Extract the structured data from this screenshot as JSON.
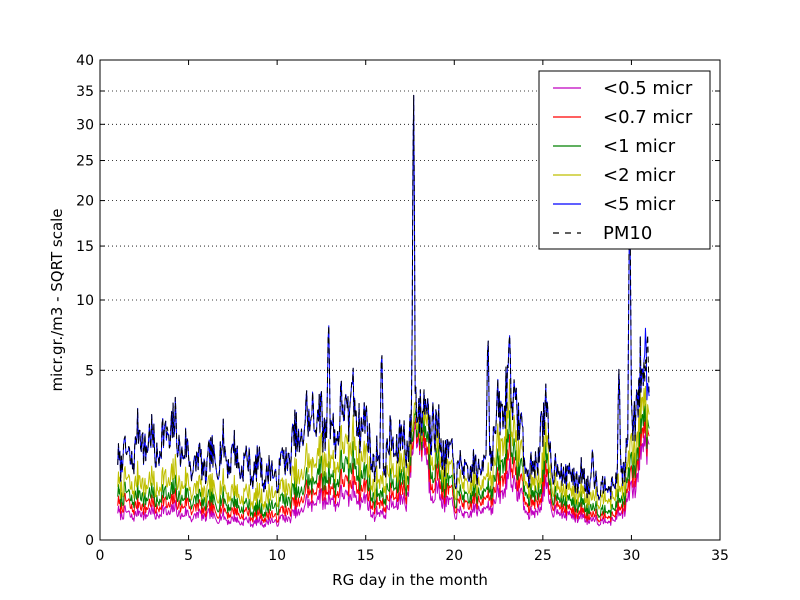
{
  "chart_data": {
    "type": "line",
    "title": "",
    "xlabel": "RG day in the month",
    "ylabel": "micr.gr./m3 - SQRT scale",
    "xlim": [
      0,
      35
    ],
    "ylim": [
      0,
      40
    ],
    "y_scale": "sqrt",
    "x_ticks": [
      0,
      5,
      10,
      15,
      20,
      25,
      30,
      35
    ],
    "y_ticks": [
      0,
      5,
      10,
      15,
      20,
      25,
      30,
      35,
      40
    ],
    "grid": "horizontal dotted",
    "legend_position": "top-right",
    "series": [
      {
        "name": "<0.5 micr",
        "color": "#bf00bf",
        "dash": "solid",
        "anchors": [
          [
            1.0,
            0.15
          ],
          [
            1.6,
            0.1
          ],
          [
            2.3,
            0.12
          ],
          [
            3.3,
            0.12
          ],
          [
            4.1,
            0.15
          ],
          [
            5.0,
            0.1
          ],
          [
            6.0,
            0.1
          ],
          [
            7.0,
            0.08
          ],
          [
            8.0,
            0.06
          ],
          [
            9.0,
            0.05
          ],
          [
            10.0,
            0.06
          ],
          [
            11.0,
            0.1
          ],
          [
            11.6,
            0.2
          ],
          [
            12.5,
            0.3
          ],
          [
            13.2,
            0.25
          ],
          [
            14.0,
            0.35
          ],
          [
            14.8,
            0.3
          ],
          [
            15.5,
            0.1
          ],
          [
            16.2,
            0.15
          ],
          [
            16.8,
            0.25
          ],
          [
            17.3,
            0.25
          ],
          [
            18.0,
            2.3
          ],
          [
            18.6,
            0.5
          ],
          [
            19.3,
            0.3
          ],
          [
            20.0,
            0.15
          ],
          [
            20.6,
            0.1
          ],
          [
            21.3,
            0.15
          ],
          [
            22.0,
            0.2
          ],
          [
            22.6,
            0.3
          ],
          [
            23.0,
            0.7
          ],
          [
            23.5,
            0.5
          ],
          [
            24.0,
            0.15
          ],
          [
            24.6,
            0.1
          ],
          [
            25.1,
            0.4
          ],
          [
            25.6,
            0.15
          ],
          [
            26.5,
            0.1
          ],
          [
            27.5,
            0.08
          ],
          [
            28.5,
            0.06
          ],
          [
            29.2,
            0.08
          ],
          [
            29.7,
            0.2
          ],
          [
            30.2,
            0.5
          ],
          [
            30.7,
            1.5
          ],
          [
            31.0,
            2.2
          ]
        ]
      },
      {
        "name": "<0.7 micr",
        "color": "#ff0000",
        "dash": "solid",
        "anchors": [
          [
            1.0,
            0.25
          ],
          [
            1.6,
            0.2
          ],
          [
            2.3,
            0.2
          ],
          [
            3.3,
            0.2
          ],
          [
            4.1,
            0.25
          ],
          [
            5.0,
            0.2
          ],
          [
            6.0,
            0.15
          ],
          [
            7.0,
            0.15
          ],
          [
            8.0,
            0.12
          ],
          [
            9.0,
            0.1
          ],
          [
            10.0,
            0.1
          ],
          [
            11.0,
            0.2
          ],
          [
            11.6,
            0.35
          ],
          [
            12.5,
            0.5
          ],
          [
            13.2,
            0.4
          ],
          [
            14.0,
            0.6
          ],
          [
            14.8,
            0.5
          ],
          [
            15.5,
            0.2
          ],
          [
            16.2,
            0.25
          ],
          [
            16.8,
            0.4
          ],
          [
            17.3,
            0.4
          ],
          [
            18.0,
            2.5
          ],
          [
            18.6,
            0.8
          ],
          [
            19.3,
            0.5
          ],
          [
            20.0,
            0.25
          ],
          [
            20.6,
            0.2
          ],
          [
            21.3,
            0.25
          ],
          [
            22.0,
            0.35
          ],
          [
            22.6,
            0.5
          ],
          [
            23.0,
            1.2
          ],
          [
            23.5,
            0.8
          ],
          [
            24.0,
            0.25
          ],
          [
            24.6,
            0.2
          ],
          [
            25.1,
            0.6
          ],
          [
            25.6,
            0.25
          ],
          [
            26.5,
            0.15
          ],
          [
            27.5,
            0.12
          ],
          [
            28.5,
            0.1
          ],
          [
            29.2,
            0.12
          ],
          [
            29.7,
            0.3
          ],
          [
            30.2,
            0.8
          ],
          [
            30.7,
            2.0
          ],
          [
            31.0,
            2.6
          ]
        ]
      },
      {
        "name": "<1 micr",
        "color": "#008000",
        "dash": "solid",
        "anchors": [
          [
            1.0,
            0.4
          ],
          [
            1.6,
            0.3
          ],
          [
            2.3,
            0.35
          ],
          [
            3.3,
            0.3
          ],
          [
            4.1,
            0.4
          ],
          [
            5.0,
            0.3
          ],
          [
            6.0,
            0.25
          ],
          [
            7.0,
            0.25
          ],
          [
            8.0,
            0.2
          ],
          [
            9.0,
            0.15
          ],
          [
            10.0,
            0.2
          ],
          [
            11.0,
            0.35
          ],
          [
            11.6,
            0.5
          ],
          [
            12.5,
            0.8
          ],
          [
            13.2,
            0.6
          ],
          [
            14.0,
            1.0
          ],
          [
            14.8,
            0.8
          ],
          [
            15.5,
            0.3
          ],
          [
            16.2,
            0.4
          ],
          [
            16.8,
            0.6
          ],
          [
            17.3,
            0.6
          ],
          [
            18.0,
            2.8
          ],
          [
            18.6,
            1.2
          ],
          [
            19.3,
            0.7
          ],
          [
            20.0,
            0.35
          ],
          [
            20.6,
            0.3
          ],
          [
            21.3,
            0.35
          ],
          [
            22.0,
            0.5
          ],
          [
            22.6,
            0.8
          ],
          [
            23.0,
            1.8
          ],
          [
            23.5,
            1.2
          ],
          [
            24.0,
            0.4
          ],
          [
            24.6,
            0.3
          ],
          [
            25.1,
            0.9
          ],
          [
            25.6,
            0.35
          ],
          [
            26.5,
            0.25
          ],
          [
            27.5,
            0.2
          ],
          [
            28.5,
            0.15
          ],
          [
            29.2,
            0.2
          ],
          [
            29.7,
            0.45
          ],
          [
            30.2,
            1.1
          ],
          [
            30.7,
            2.5
          ],
          [
            31.0,
            3.0
          ]
        ]
      },
      {
        "name": "<2 micr",
        "color": "#bfbf00",
        "dash": "solid",
        "anchors": [
          [
            1.0,
            0.6
          ],
          [
            1.6,
            0.5
          ],
          [
            2.3,
            0.6
          ],
          [
            3.3,
            0.5
          ],
          [
            4.1,
            0.7
          ],
          [
            5.0,
            0.5
          ],
          [
            6.0,
            0.4
          ],
          [
            7.0,
            0.45
          ],
          [
            8.0,
            0.35
          ],
          [
            9.0,
            0.3
          ],
          [
            10.0,
            0.35
          ],
          [
            11.0,
            0.6
          ],
          [
            11.6,
            0.9
          ],
          [
            12.5,
            1.3
          ],
          [
            13.2,
            1.0
          ],
          [
            14.0,
            1.6
          ],
          [
            14.8,
            1.3
          ],
          [
            15.5,
            0.5
          ],
          [
            16.2,
            0.7
          ],
          [
            16.8,
            0.9
          ],
          [
            17.3,
            0.9
          ],
          [
            18.0,
            3.2
          ],
          [
            18.6,
            1.8
          ],
          [
            19.3,
            1.0
          ],
          [
            20.0,
            0.55
          ],
          [
            20.6,
            0.5
          ],
          [
            21.3,
            0.5
          ],
          [
            22.0,
            0.8
          ],
          [
            22.6,
            1.3
          ],
          [
            23.0,
            2.8
          ],
          [
            23.5,
            1.8
          ],
          [
            24.0,
            0.6
          ],
          [
            24.6,
            0.5
          ],
          [
            25.1,
            1.3
          ],
          [
            25.6,
            0.55
          ],
          [
            26.5,
            0.4
          ],
          [
            27.5,
            0.35
          ],
          [
            28.5,
            0.3
          ],
          [
            29.2,
            0.35
          ],
          [
            29.7,
            0.7
          ],
          [
            30.2,
            1.6
          ],
          [
            30.7,
            3.2
          ],
          [
            31.0,
            3.8
          ]
        ]
      },
      {
        "name": "<5 micr",
        "color": "#0000ff",
        "dash": "solid",
        "anchors": [
          [
            1.0,
            1.2
          ],
          [
            1.6,
            1.0
          ],
          [
            2.3,
            1.8
          ],
          [
            3.3,
            1.4
          ],
          [
            4.1,
            2.0
          ],
          [
            5.0,
            1.1
          ],
          [
            6.0,
            0.9
          ],
          [
            7.0,
            1.3
          ],
          [
            8.0,
            1.0
          ],
          [
            9.0,
            0.8
          ],
          [
            10.0,
            0.7
          ],
          [
            11.0,
            1.5
          ],
          [
            11.6,
            2.2
          ],
          [
            12.5,
            2.5
          ],
          [
            13.2,
            2.0
          ],
          [
            14.0,
            3.0
          ],
          [
            14.8,
            2.5
          ],
          [
            15.5,
            1.0
          ],
          [
            16.2,
            1.3
          ],
          [
            16.8,
            1.6
          ],
          [
            17.3,
            1.6
          ],
          [
            18.0,
            3.5
          ],
          [
            18.6,
            2.3
          ],
          [
            19.3,
            1.5
          ],
          [
            20.0,
            0.9
          ],
          [
            20.6,
            0.8
          ],
          [
            21.3,
            0.8
          ],
          [
            22.0,
            1.5
          ],
          [
            22.6,
            2.5
          ],
          [
            23.0,
            4.5
          ],
          [
            23.5,
            3.0
          ],
          [
            24.0,
            0.9
          ],
          [
            24.6,
            0.8
          ],
          [
            25.1,
            2.3
          ],
          [
            25.6,
            0.9
          ],
          [
            26.5,
            0.7
          ],
          [
            27.5,
            0.6
          ],
          [
            28.5,
            0.5
          ],
          [
            29.2,
            0.6
          ],
          [
            29.7,
            1.2
          ],
          [
            30.2,
            2.8
          ],
          [
            30.7,
            4.5
          ],
          [
            31.0,
            5.0
          ]
        ],
        "peaks": [
          [
            1.35,
            1.8
          ],
          [
            2.1,
            2.0
          ],
          [
            3.8,
            2.1
          ],
          [
            7.5,
            1.6
          ],
          [
            9.0,
            1.5
          ],
          [
            10.3,
            1.3
          ],
          [
            12.0,
            3.8
          ],
          [
            12.9,
            9.0
          ],
          [
            14.2,
            4.5
          ],
          [
            15.9,
            7.0
          ],
          [
            17.7,
            37.5
          ],
          [
            18.8,
            3.5
          ],
          [
            21.9,
            8.0
          ],
          [
            22.3,
            2.0
          ],
          [
            23.1,
            7.0
          ],
          [
            23.5,
            4.0
          ],
          [
            24.9,
            3.3
          ],
          [
            27.8,
            1.5
          ],
          [
            29.3,
            5.5
          ],
          [
            29.9,
            21.0
          ],
          [
            30.3,
            4.0
          ],
          [
            30.8,
            8.0
          ]
        ]
      },
      {
        "name": "PM10",
        "color": "#000000",
        "dash": "dashed",
        "anchors": [
          [
            1.0,
            1.2
          ],
          [
            1.6,
            1.0
          ],
          [
            2.3,
            1.8
          ],
          [
            3.3,
            1.4
          ],
          [
            4.1,
            2.0
          ],
          [
            5.0,
            1.1
          ],
          [
            6.0,
            0.9
          ],
          [
            7.0,
            1.3
          ],
          [
            8.0,
            1.0
          ],
          [
            9.0,
            0.8
          ],
          [
            10.0,
            0.7
          ],
          [
            11.0,
            1.5
          ],
          [
            11.6,
            2.2
          ],
          [
            12.5,
            2.5
          ],
          [
            13.2,
            2.0
          ],
          [
            14.0,
            3.0
          ],
          [
            14.8,
            2.5
          ],
          [
            15.5,
            1.0
          ],
          [
            16.2,
            1.3
          ],
          [
            16.8,
            1.6
          ],
          [
            17.3,
            1.6
          ],
          [
            18.0,
            3.5
          ],
          [
            18.6,
            2.3
          ],
          [
            19.3,
            1.5
          ],
          [
            20.0,
            0.9
          ],
          [
            20.6,
            0.8
          ],
          [
            21.3,
            0.8
          ],
          [
            22.0,
            1.5
          ],
          [
            22.6,
            2.5
          ],
          [
            23.0,
            4.5
          ],
          [
            23.5,
            3.0
          ],
          [
            24.0,
            0.9
          ],
          [
            24.6,
            0.8
          ],
          [
            25.1,
            2.3
          ],
          [
            25.6,
            0.9
          ],
          [
            26.5,
            0.7
          ],
          [
            27.5,
            0.6
          ],
          [
            28.5,
            0.5
          ],
          [
            29.2,
            0.6
          ],
          [
            29.7,
            1.2
          ],
          [
            30.2,
            2.8
          ],
          [
            30.7,
            4.5
          ],
          [
            31.0,
            5.0
          ]
        ],
        "peaks": [
          [
            1.35,
            1.8
          ],
          [
            2.1,
            2.0
          ],
          [
            3.8,
            2.3
          ],
          [
            7.5,
            1.6
          ],
          [
            9.0,
            1.5
          ],
          [
            10.3,
            1.3
          ],
          [
            12.0,
            3.8
          ],
          [
            12.9,
            9.0
          ],
          [
            14.2,
            4.5
          ],
          [
            15.9,
            7.0
          ],
          [
            17.7,
            37.5
          ],
          [
            18.8,
            3.5
          ],
          [
            21.9,
            8.0
          ],
          [
            22.3,
            2.0
          ],
          [
            23.1,
            7.0
          ],
          [
            23.5,
            4.0
          ],
          [
            24.9,
            3.3
          ],
          [
            27.8,
            1.5
          ],
          [
            29.3,
            5.5
          ],
          [
            29.9,
            24.0
          ],
          [
            30.3,
            4.0
          ],
          [
            30.9,
            8.0
          ]
        ]
      }
    ]
  }
}
